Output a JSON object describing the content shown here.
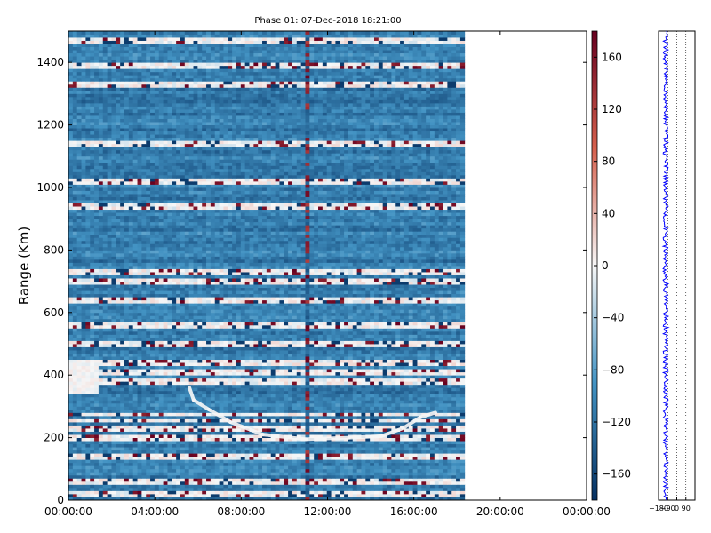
{
  "chart_data": [
    {
      "type": "heatmap",
      "title": "Phase 01: 07-Dec-2018 18:21:00",
      "xlabel": "",
      "ylabel": "Range (Km)",
      "xticks": [
        "00:00:00",
        "04:00:00",
        "08:00:00",
        "12:00:00",
        "16:00:00",
        "20:00:00",
        "00:00:00"
      ],
      "xlim_hours": [
        0,
        24
      ],
      "data_end_hours": 18.35,
      "yticks": [
        0,
        200,
        400,
        600,
        800,
        1000,
        1200,
        1400
      ],
      "ylim": [
        0,
        1500
      ],
      "grid": false,
      "colorbar": {
        "ticks": [
          160,
          120,
          80,
          40,
          0,
          -40,
          -80,
          -120,
          -160
        ],
        "range": [
          -180,
          180
        ],
        "colors": {
          "min": "#053061",
          "low": "#4393c3",
          "mid": "#f7f7f7",
          "high": "#d6604d",
          "max": "#67001f"
        }
      },
      "typical_value": -110,
      "bright_rows_km": [
        20,
        60,
        140,
        200,
        230,
        255,
        275,
        380,
        410,
        440,
        500,
        560,
        640,
        700,
        730,
        940,
        1020,
        1140,
        1330,
        1390,
        1470
      ],
      "phase_spike_hours": 11.1,
      "echo_trace": [
        {
          "t": 5.6,
          "r": 360
        },
        {
          "t": 5.8,
          "r": 320
        },
        {
          "t": 6.5,
          "r": 290
        },
        {
          "t": 7.5,
          "r": 250
        },
        {
          "t": 9.0,
          "r": 210
        },
        {
          "t": 11.0,
          "r": 195
        },
        {
          "t": 13.0,
          "r": 200
        },
        {
          "t": 14.5,
          "r": 205
        },
        {
          "t": 15.5,
          "r": 230
        },
        {
          "t": 16.3,
          "r": 265
        },
        {
          "t": 17.0,
          "r": 280
        }
      ]
    },
    {
      "type": "line",
      "xticks": [
        -180,
        -90,
        0,
        90
      ],
      "xlim": [
        -180,
        180
      ],
      "ylim": [
        0,
        1500
      ],
      "grid": "dotted-vertical",
      "series_color": "#0000ff",
      "profile_mean": -110,
      "profile_spread": 25
    }
  ]
}
